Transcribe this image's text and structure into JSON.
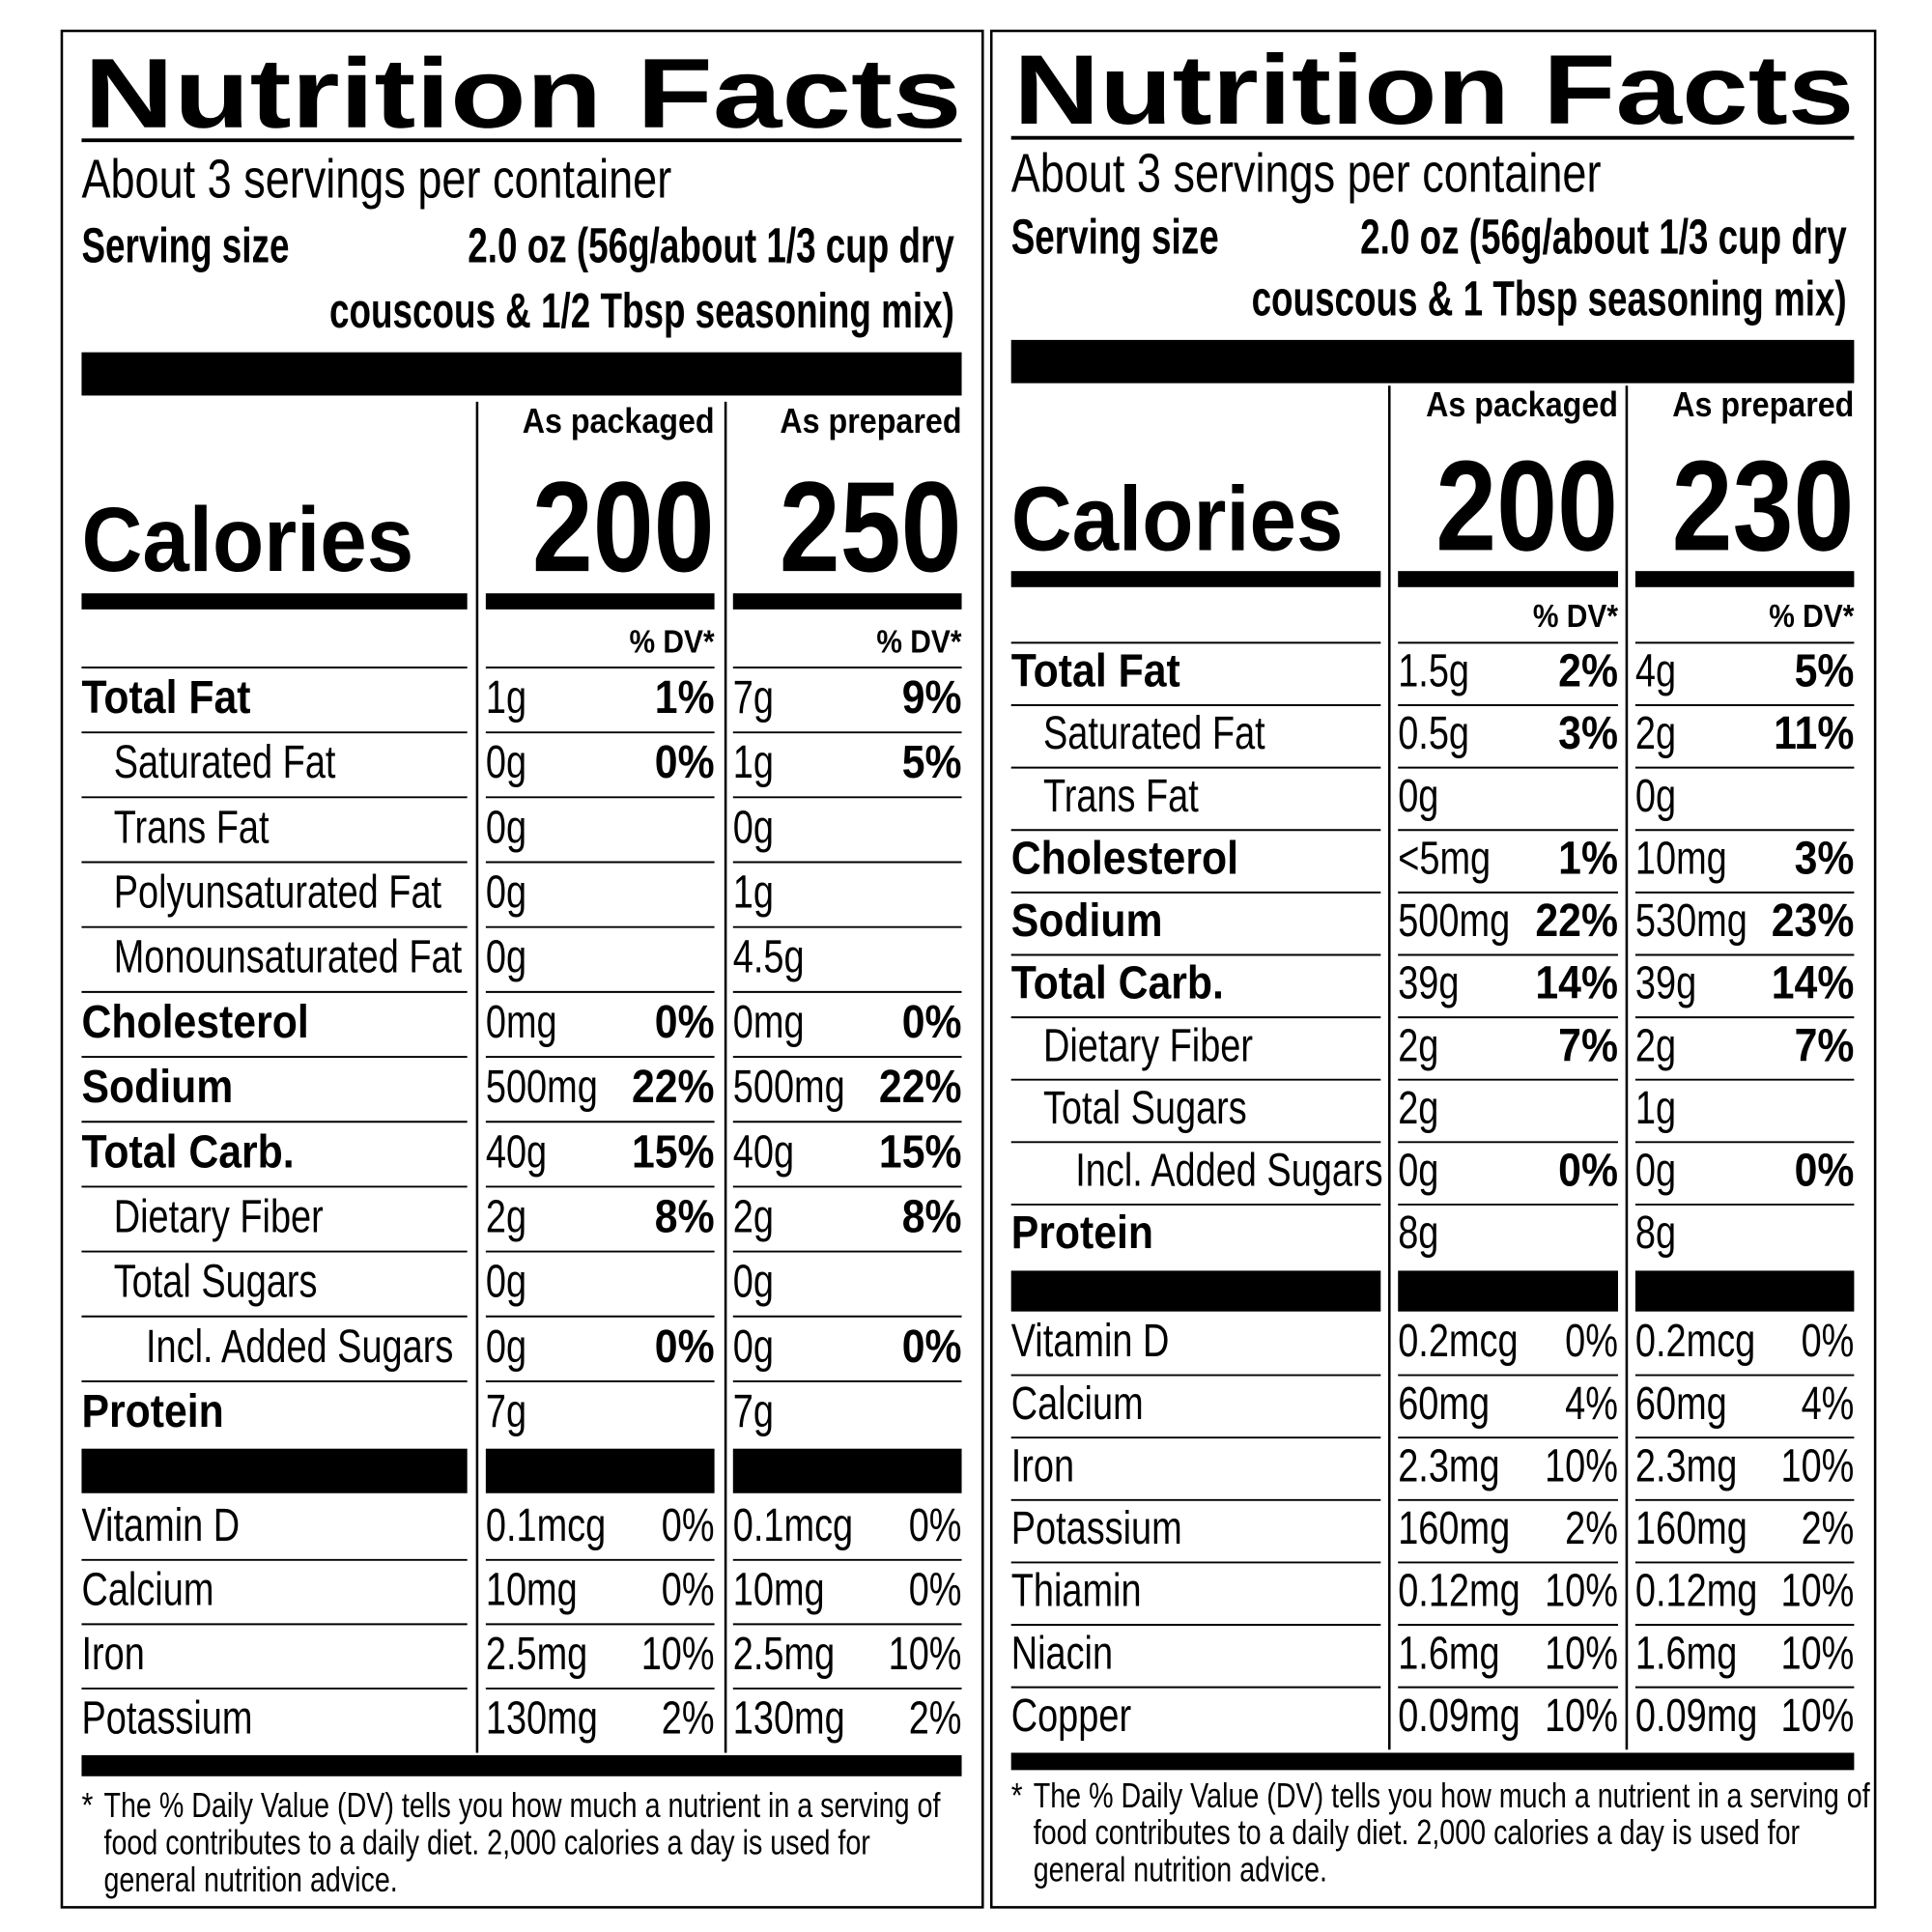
{
  "labels": [
    {
      "title": "Nutrition Facts",
      "servings": "About 3 servings per container",
      "serving_size_label": "Serving size",
      "serving_size_lines": [
        "2.0 oz (56g/about 1/3 cup dry",
        "couscous & 1/2 Tbsp seasoning mix)"
      ],
      "columns": [
        "As packaged",
        "As prepared"
      ],
      "calories_label": "Calories",
      "calories": [
        200,
        250
      ],
      "dv_header": "% DV*",
      "nutrients": [
        {
          "name": "Total Fat",
          "indent": 0,
          "values": [
            [
              "1g",
              "1%"
            ],
            [
              "7g",
              "9%"
            ]
          ]
        },
        {
          "name": "Saturated Fat",
          "indent": 1,
          "values": [
            [
              "0g",
              "0%"
            ],
            [
              "1g",
              "5%"
            ]
          ]
        },
        {
          "name": "Trans Fat",
          "indent": 1,
          "values": [
            [
              "0g"
            ],
            [
              "0g"
            ]
          ]
        },
        {
          "name": "Polyunsaturated Fat",
          "indent": 1,
          "values": [
            [
              "0g"
            ],
            [
              "1g"
            ]
          ]
        },
        {
          "name": "Monounsaturated Fat",
          "indent": 1,
          "values": [
            [
              "0g"
            ],
            [
              "4.5g"
            ]
          ]
        },
        {
          "name": "Cholesterol",
          "indent": 0,
          "values": [
            [
              "0mg",
              "0%"
            ],
            [
              "0mg",
              "0%"
            ]
          ]
        },
        {
          "name": "Sodium",
          "indent": 0,
          "values": [
            [
              "500mg",
              "22%"
            ],
            [
              "500mg",
              "22%"
            ]
          ]
        },
        {
          "name": "Total Carb.",
          "indent": 0,
          "values": [
            [
              "40g",
              "15%"
            ],
            [
              "40g",
              "15%"
            ]
          ]
        },
        {
          "name": "Dietary Fiber",
          "indent": 1,
          "values": [
            [
              "2g",
              "8%"
            ],
            [
              "2g",
              "8%"
            ]
          ]
        },
        {
          "name": "Total Sugars",
          "indent": 1,
          "values": [
            [
              "0g"
            ],
            [
              "0g"
            ]
          ]
        },
        {
          "name": "Incl. Added Sugars",
          "indent": 2,
          "values": [
            [
              "0g",
              "0%"
            ],
            [
              "0g",
              "0%"
            ]
          ]
        },
        {
          "name": "Protein",
          "indent": 0,
          "values": [
            [
              "7g"
            ],
            [
              "7g"
            ]
          ]
        }
      ],
      "vitamins": [
        {
          "name": "Vitamin D",
          "values": [
            [
              "0.1mcg",
              "0%"
            ],
            [
              "0.1mcg",
              "0%"
            ]
          ]
        },
        {
          "name": "Calcium",
          "values": [
            [
              "10mg",
              "0%"
            ],
            [
              "10mg",
              "0%"
            ]
          ]
        },
        {
          "name": "Iron",
          "values": [
            [
              "2.5mg",
              "10%"
            ],
            [
              "2.5mg",
              "10%"
            ]
          ]
        },
        {
          "name": "Potassium",
          "values": [
            [
              "130mg",
              "2%"
            ],
            [
              "130mg",
              "2%"
            ]
          ]
        }
      ],
      "footnote_mark": "*",
      "footnote_lines": [
        "The % Daily Value (DV) tells you how much a nutrient in a serving of",
        "food contributes to a daily diet. 2,000 calories a day is used for",
        "general nutrition advice."
      ]
    },
    {
      "title": "Nutrition Facts",
      "servings": "About 3 servings per container",
      "serving_size_label": "Serving size",
      "serving_size_lines": [
        "2.0 oz (56g/about 1/3 cup dry",
        "couscous & 1 Tbsp seasoning mix)"
      ],
      "columns": [
        "As packaged",
        "As prepared"
      ],
      "calories_label": "Calories",
      "calories": [
        200,
        230
      ],
      "dv_header": "% DV*",
      "nutrients": [
        {
          "name": "Total Fat",
          "indent": 0,
          "values": [
            [
              "1.5g",
              "2%"
            ],
            [
              "4g",
              "5%"
            ]
          ]
        },
        {
          "name": "Saturated Fat",
          "indent": 1,
          "values": [
            [
              "0.5g",
              "3%"
            ],
            [
              "2g",
              "11%"
            ]
          ]
        },
        {
          "name": "Trans Fat",
          "indent": 1,
          "values": [
            [
              "0g"
            ],
            [
              "0g"
            ]
          ]
        },
        {
          "name": "Cholesterol",
          "indent": 0,
          "values": [
            [
              "<5mg",
              "1%"
            ],
            [
              "10mg",
              "3%"
            ]
          ]
        },
        {
          "name": "Sodium",
          "indent": 0,
          "values": [
            [
              "500mg",
              "22%"
            ],
            [
              "530mg",
              "23%"
            ]
          ]
        },
        {
          "name": "Total Carb.",
          "indent": 0,
          "values": [
            [
              "39g",
              "14%"
            ],
            [
              "39g",
              "14%"
            ]
          ]
        },
        {
          "name": "Dietary Fiber",
          "indent": 1,
          "values": [
            [
              "2g",
              "7%"
            ],
            [
              "2g",
              "7%"
            ]
          ]
        },
        {
          "name": "Total Sugars",
          "indent": 1,
          "values": [
            [
              "2g"
            ],
            [
              "1g"
            ]
          ]
        },
        {
          "name": "Incl. Added Sugars",
          "indent": 2,
          "values": [
            [
              "0g",
              "0%"
            ],
            [
              "0g",
              "0%"
            ]
          ]
        },
        {
          "name": "Protein",
          "indent": 0,
          "values": [
            [
              "8g"
            ],
            [
              "8g"
            ]
          ]
        }
      ],
      "vitamins": [
        {
          "name": "Vitamin D",
          "values": [
            [
              "0.2mcg",
              "0%"
            ],
            [
              "0.2mcg",
              "0%"
            ]
          ]
        },
        {
          "name": "Calcium",
          "values": [
            [
              "60mg",
              "4%"
            ],
            [
              "60mg",
              "4%"
            ]
          ]
        },
        {
          "name": "Iron",
          "values": [
            [
              "2.3mg",
              "10%"
            ],
            [
              "2.3mg",
              "10%"
            ]
          ]
        },
        {
          "name": "Potassium",
          "values": [
            [
              "160mg",
              "2%"
            ],
            [
              "160mg",
              "2%"
            ]
          ]
        },
        {
          "name": "Thiamin",
          "values": [
            [
              "0.12mg",
              "10%"
            ],
            [
              "0.12mg",
              "10%"
            ]
          ]
        },
        {
          "name": "Niacin",
          "values": [
            [
              "1.6mg",
              "10%"
            ],
            [
              "1.6mg",
              "10%"
            ]
          ]
        },
        {
          "name": "Copper",
          "values": [
            [
              "0.09mg",
              "10%"
            ],
            [
              "0.09mg",
              "10%"
            ]
          ]
        }
      ],
      "footnote_mark": "*",
      "footnote_lines": [
        "The % Daily Value (DV) tells you how much a nutrient in a serving of",
        "food contributes to a daily diet. 2,000 calories a day is used for",
        "general nutrition advice."
      ]
    }
  ]
}
